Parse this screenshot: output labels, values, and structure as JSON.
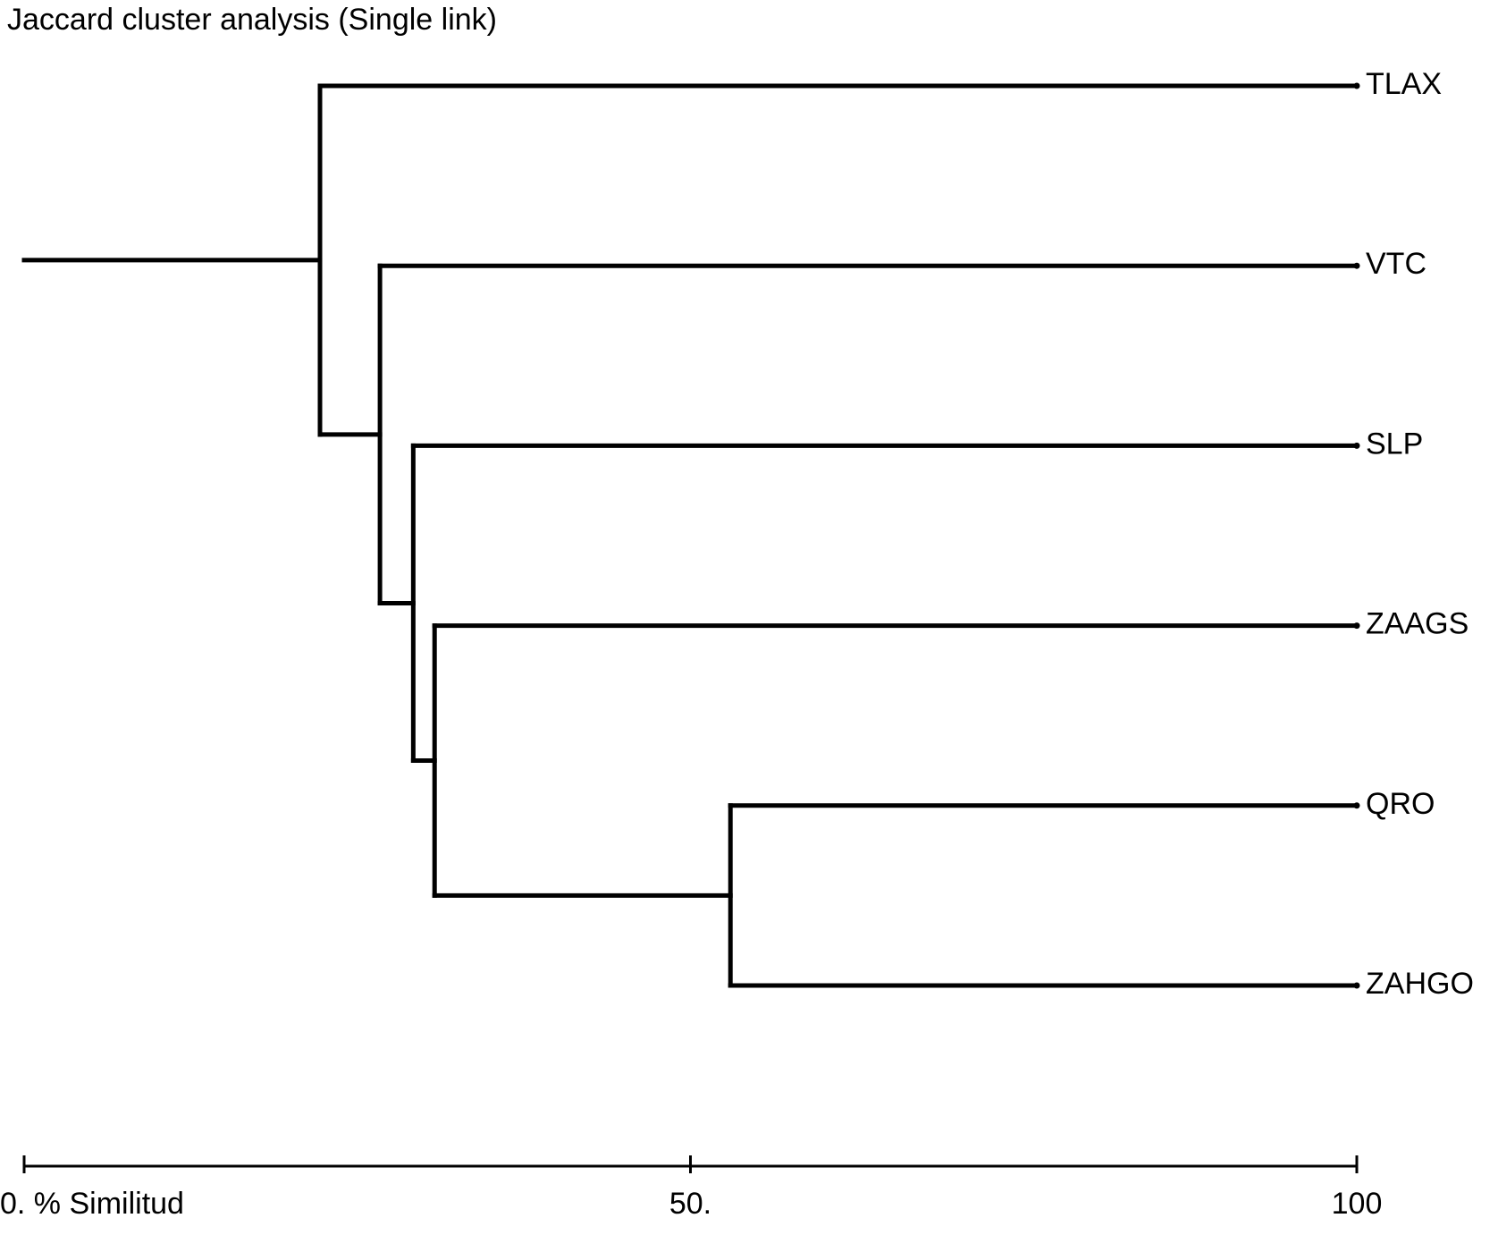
{
  "chart_data": {
    "type": "dendrogram",
    "title": "Jaccard cluster analysis (Single link)",
    "xlim": [
      0,
      100
    ],
    "xticks": [
      {
        "value": 0,
        "label": "0. % Similitud"
      },
      {
        "value": 50,
        "label": "50."
      },
      100
    ],
    "tree": {
      "similarity": 22.2,
      "children": [
        {
          "label": "TLAX"
        },
        {
          "similarity": 26.7,
          "children": [
            {
              "label": "VTC"
            },
            {
              "similarity": 29.2,
              "children": [
                {
                  "label": "SLP"
                },
                {
                  "similarity": 30.8,
                  "children": [
                    {
                      "label": "ZAAGS"
                    },
                    {
                      "similarity": 53.0,
                      "children": [
                        {
                          "label": "QRO"
                        },
                        {
                          "label": "ZAHGO"
                        }
                      ]
                    }
                  ]
                }
              ]
            }
          ]
        }
      ]
    }
  }
}
